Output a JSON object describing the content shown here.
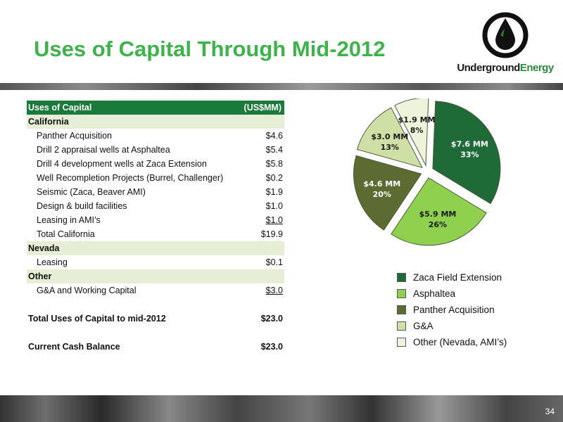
{
  "title": "Uses of Capital Through Mid-2012",
  "logo": {
    "text_main": "Underground",
    "text_accent": "Energy"
  },
  "page_number": "34",
  "table": {
    "header": {
      "label": "Uses of Capital",
      "value": "(US$MM)"
    },
    "rows": [
      {
        "label": "California",
        "value": "",
        "kind": "section"
      },
      {
        "label": "Panther Acquisition",
        "value": "$4.6",
        "kind": "item"
      },
      {
        "label": "Drill 2 appraisal wells at Asphaltea",
        "value": "$5.4",
        "kind": "item"
      },
      {
        "label": "Drill 4 development wells at Zaca Extension",
        "value": "$5.8",
        "kind": "item"
      },
      {
        "label": "Well Recompletion Projects (Burrel, Challenger)",
        "value": "$0.2",
        "kind": "item"
      },
      {
        "label": "Seismic (Zaca, Beaver AMI)",
        "value": "$1.9",
        "kind": "item"
      },
      {
        "label": "Design & build facilities",
        "value": "$1.0",
        "kind": "item"
      },
      {
        "label": "Leasing in AMI’s",
        "value": "$1.0",
        "kind": "item",
        "underline": true
      },
      {
        "label": "Total California",
        "value": "$19.9",
        "kind": "item"
      },
      {
        "label": "Nevada",
        "value": "",
        "kind": "section"
      },
      {
        "label": "Leasing",
        "value": "$0.1",
        "kind": "item"
      },
      {
        "label": "Other",
        "value": "",
        "kind": "section"
      },
      {
        "label": "G&A and Working Capital",
        "value": "$3.0",
        "kind": "item",
        "underline": true
      },
      {
        "label": "",
        "value": "",
        "kind": "blank"
      },
      {
        "label": "Total Uses of Capital to mid-2012",
        "value": "$23.0",
        "kind": "total"
      },
      {
        "label": "",
        "value": "",
        "kind": "blank"
      },
      {
        "label": "Current Cash Balance",
        "value": "$23.0",
        "kind": "total"
      }
    ]
  },
  "chart_data": {
    "type": "pie",
    "slices": [
      {
        "name": "Zaca Field Extension",
        "value": 7.6,
        "percent": 33,
        "label_value": "$7.6 MM",
        "label_pct": "33%",
        "color": "#1e6b38",
        "label_color": "#ffffff"
      },
      {
        "name": "Asphaltea",
        "value": 5.9,
        "percent": 26,
        "label_value": "$5.9 MM",
        "label_pct": "26%",
        "color": "#8fd14f",
        "label_color": "#1a1a1a"
      },
      {
        "name": "Panther Acquisition",
        "value": 4.6,
        "percent": 20,
        "label_value": "$4.6 MM",
        "label_pct": "20%",
        "color": "#5b6b32",
        "label_color": "#ffffff"
      },
      {
        "name": "G&A",
        "value": 3.0,
        "percent": 13,
        "label_value": "$3.0 MM",
        "label_pct": "13%",
        "color": "#cfe0a6",
        "label_color": "#1a1a1a"
      },
      {
        "name": "Other (Nevada, AMI’s)",
        "value": 1.9,
        "percent": 8,
        "label_value": "$1.9 MM",
        "label_pct": "8%",
        "color": "#eef4dc",
        "label_color": "#1a1a1a"
      }
    ],
    "legend_position": "bottom"
  }
}
